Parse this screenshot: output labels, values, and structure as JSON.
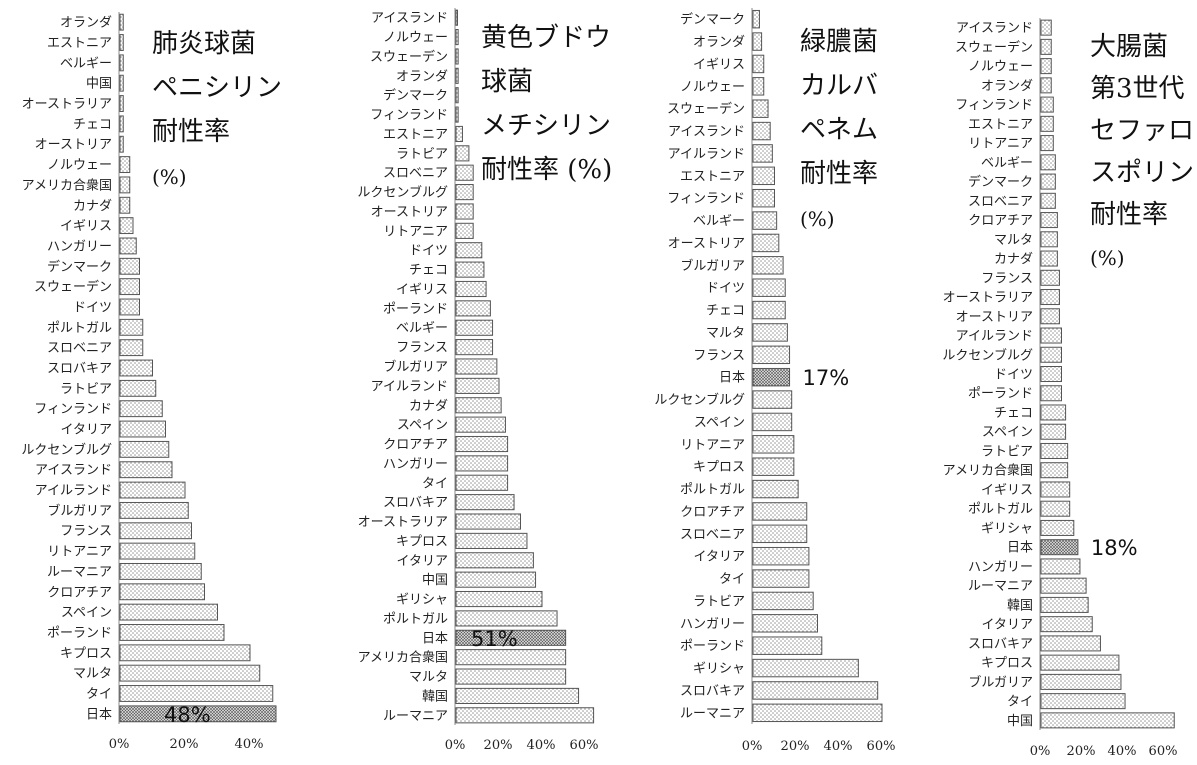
{
  "colors": {
    "bar_border": "#555555",
    "bar_fill_dots": "#9a9a9a",
    "highlight_fill": "#6e6e6e",
    "axis": "#888888"
  },
  "chart_data": [
    {
      "type": "bar",
      "orientation": "horizontal",
      "title_lines": [
        "肺炎球菌",
        "ペニシリン",
        "耐性率",
        "(%)"
      ],
      "categories": [
        "オランダ",
        "エストニア",
        "ベルギー",
        "中国",
        "オーストラリア",
        "チェコ",
        "オーストリア",
        "ノルウェー",
        "アメリカ合衆国",
        "カナダ",
        "イギリス",
        "ハンガリー",
        "デンマーク",
        "スウェーデン",
        "ドイツ",
        "ポルトガル",
        "スロベニア",
        "スロバキア",
        "ラトビア",
        "フィンランド",
        "イタリア",
        "ルクセンブルグ",
        "アイスランド",
        "アイルランド",
        "ブルガリア",
        "フランス",
        "リトアニア",
        "ルーマニア",
        "クロアチア",
        "スペイン",
        "ポーランド",
        "キプロス",
        "マルタ",
        "タイ",
        "日本"
      ],
      "values": [
        1,
        1,
        1,
        1,
        1,
        1,
        1,
        3,
        3,
        3,
        4,
        5,
        6,
        6,
        6,
        7,
        7,
        10,
        11,
        13,
        14,
        15,
        16,
        20,
        21,
        22,
        23,
        25,
        26,
        30,
        32,
        40,
        43,
        47,
        48
      ],
      "highlight": "日本",
      "data_label": "48%",
      "x_ticks": [
        "0%",
        "20%",
        "40%"
      ],
      "xlim": [
        0,
        50
      ]
    },
    {
      "type": "bar",
      "orientation": "horizontal",
      "title_lines": [
        "黄色ブドウ",
        "球菌",
        "メチシリン",
        "耐性率 (%)"
      ],
      "categories": [
        "アイスランド",
        "ノルウェー",
        "スウェーデン",
        "オランダ",
        "デンマーク",
        "フィンランド",
        "エストニア",
        "ラトビア",
        "スロベニア",
        "ルクセンブルグ",
        "オーストリア",
        "リトアニア",
        "ドイツ",
        "チェコ",
        "イギリス",
        "ポーランド",
        "ベルギー",
        "フランス",
        "ブルガリア",
        "アイルランド",
        "カナダ",
        "スペイン",
        "クロアチア",
        "ハンガリー",
        "タイ",
        "スロバキア",
        "オーストラリア",
        "キプロス",
        "イタリア",
        "中国",
        "ギリシャ",
        "ポルトガル",
        "日本",
        "アメリカ合衆国",
        "マルタ",
        "韓国",
        "ルーマニア"
      ],
      "values": [
        0.5,
        1,
        1,
        1,
        1,
        1,
        3,
        6,
        8,
        8,
        8,
        8,
        12,
        13,
        14,
        16,
        17,
        17,
        19,
        20,
        21,
        23,
        24,
        24,
        24,
        27,
        30,
        33,
        36,
        37,
        40,
        47,
        51,
        51,
        51,
        57,
        64
      ],
      "highlight": "日本",
      "data_label": "51%",
      "x_ticks": [
        "0%",
        "20%",
        "40%",
        "60%"
      ],
      "xlim": [
        0,
        70
      ]
    },
    {
      "type": "bar",
      "orientation": "horizontal",
      "title_lines": [
        "緑膿菌",
        "カルバ",
        "ペネム",
        "耐性率",
        "(%)"
      ],
      "categories": [
        "デンマーク",
        "オランダ",
        "イギリス",
        "ノルウェー",
        "スウェーデン",
        "アイスランド",
        "アイルランド",
        "エストニア",
        "フィンランド",
        "ベルギー",
        "オーストリア",
        "ブルガリア",
        "ドイツ",
        "チェコ",
        "マルタ",
        "フランス",
        "日本",
        "ルクセンブルグ",
        "スペイン",
        "リトアニア",
        "キプロス",
        "ポルトガル",
        "クロアチア",
        "スロベニア",
        "イタリア",
        "タイ",
        "ラトビア",
        "ハンガリー",
        "ポーランド",
        "ギリシャ",
        "スロバキア",
        "ルーマニア"
      ],
      "values": [
        3,
        4,
        5,
        5,
        7,
        8,
        9,
        10,
        10,
        11,
        12,
        14,
        15,
        15,
        16,
        17,
        17,
        18,
        18,
        19,
        19,
        21,
        25,
        25,
        26,
        26,
        28,
        30,
        32,
        49,
        58,
        60
      ],
      "highlight": "日本",
      "data_label": "17%",
      "x_ticks": [
        "0%",
        "20%",
        "40%",
        "60%"
      ],
      "xlim": [
        0,
        65
      ]
    },
    {
      "type": "bar",
      "orientation": "horizontal",
      "title_lines": [
        "大腸菌",
        "第3世代",
        "セファロ",
        "スポリン",
        "耐性率",
        "(%)"
      ],
      "categories": [
        "アイスランド",
        "スウェーデン",
        "ノルウェー",
        "オランダ",
        "フィンランド",
        "エストニア",
        "リトアニア",
        "ベルギー",
        "デンマーク",
        "スロベニア",
        "クロアチア",
        "マルタ",
        "カナダ",
        "フランス",
        "オーストラリア",
        "オーストリア",
        "アイルランド",
        "ルクセンブルグ",
        "ドイツ",
        "ポーランド",
        "チェコ",
        "スペイン",
        "ラトビア",
        "アメリカ合衆国",
        "イギリス",
        "ポルトガル",
        "ギリシャ",
        "日本",
        "ハンガリー",
        "ルーマニア",
        "韓国",
        "イタリア",
        "スロバキア",
        "キプロス",
        "ブルガリア",
        "タイ",
        "中国"
      ],
      "values": [
        5,
        5,
        5,
        5,
        6,
        6,
        6,
        7,
        7,
        7,
        8,
        8,
        8,
        9,
        9,
        9,
        10,
        10,
        10,
        10,
        12,
        12,
        13,
        13,
        14,
        14,
        16,
        18,
        19,
        22,
        23,
        25,
        29,
        38,
        39,
        41,
        65
      ],
      "highlight": "日本",
      "data_label": "18%",
      "x_ticks": [
        "0%",
        "20%",
        "40%",
        "60%"
      ],
      "xlim": [
        0,
        70
      ]
    }
  ]
}
